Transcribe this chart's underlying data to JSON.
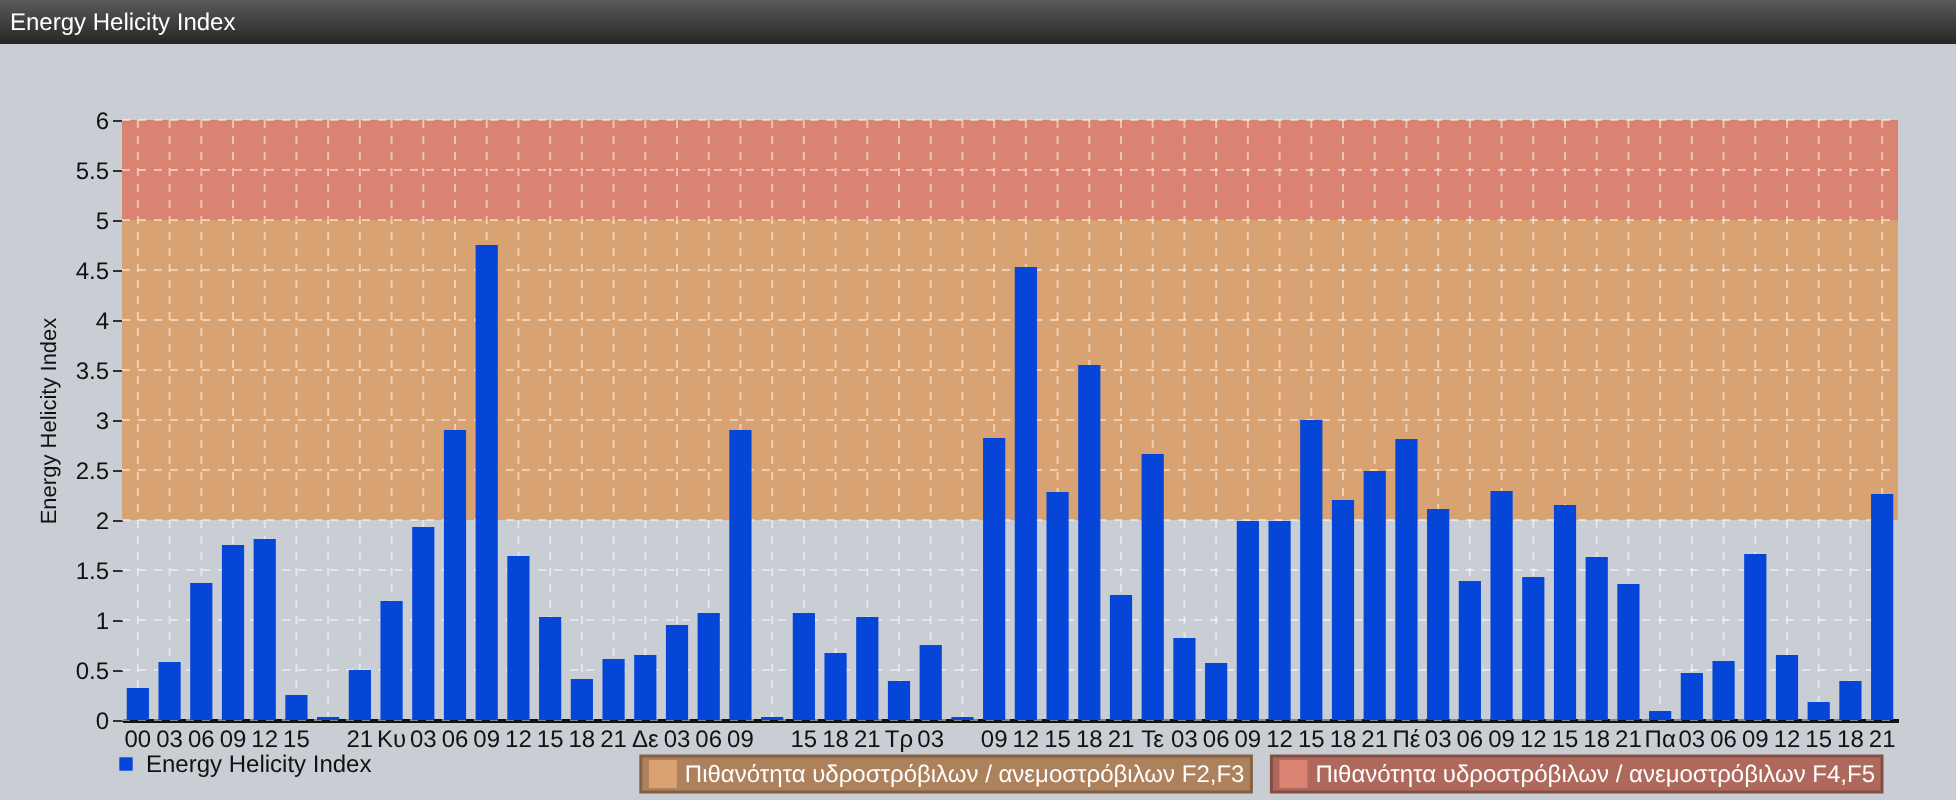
{
  "chart_data": {
    "type": "bar",
    "title": "Energy Helicity Index",
    "ylabel": "Energy Helicity Index",
    "categories": [
      "00",
      "03",
      "06",
      "09",
      "12",
      "15",
      null,
      "21",
      "Κυ",
      "03",
      "06",
      "09",
      "12",
      "15",
      "18",
      "21",
      "Δε",
      "03",
      "06",
      "09",
      null,
      "15",
      "18",
      "21",
      "Τρ",
      "03",
      null,
      "09",
      "12",
      "15",
      "18",
      "21",
      "Τε",
      "03",
      "06",
      "09",
      "12",
      "15",
      "18",
      "21",
      "Πέ",
      "03",
      "06",
      "09",
      "12",
      "15",
      "18",
      "21",
      "Πα",
      "03",
      "06",
      "09",
      "12",
      "15",
      "18",
      "21"
    ],
    "series": [
      {
        "name": "Energy Helicity Index",
        "color": "#0545d8",
        "values": [
          0.32,
          0.58,
          1.37,
          1.75,
          1.81,
          0.25,
          0.03,
          0.5,
          1.19,
          1.93,
          2.9,
          4.75,
          1.64,
          1.03,
          0.41,
          0.61,
          0.65,
          0.95,
          1.07,
          2.9,
          0.03,
          1.07,
          0.67,
          1.03,
          0.39,
          0.75,
          0.03,
          2.82,
          4.53,
          2.28,
          3.55,
          1.25,
          2.66,
          0.82,
          0.57,
          1.99,
          1.99,
          3.0,
          2.2,
          2.49,
          2.81,
          2.11,
          1.39,
          2.29,
          1.43,
          2.15,
          1.63,
          1.36,
          0.09,
          0.47,
          0.59,
          1.66,
          0.65,
          0.18,
          0.39,
          2.26
        ]
      }
    ],
    "ylim": [
      0,
      6
    ],
    "yticks": [
      0,
      0.5,
      1,
      1.5,
      2,
      2.5,
      3,
      3.5,
      4,
      4.5,
      5,
      5.5,
      6
    ],
    "grid": true,
    "legend": "bottom left",
    "bands": [
      {
        "axis": "y",
        "from": 2,
        "to": 5,
        "label": "Πιθανότητα υδροστρόβιλων / ανεμοστρόβιλων F2,F3",
        "color": "#d9a272"
      },
      {
        "axis": "y",
        "from": 5,
        "to": 6,
        "label": "Πιθανότητα υδροστρόβιλων / ανεμοστρόβιλων F4,F5",
        "color": "#da8373"
      }
    ]
  }
}
